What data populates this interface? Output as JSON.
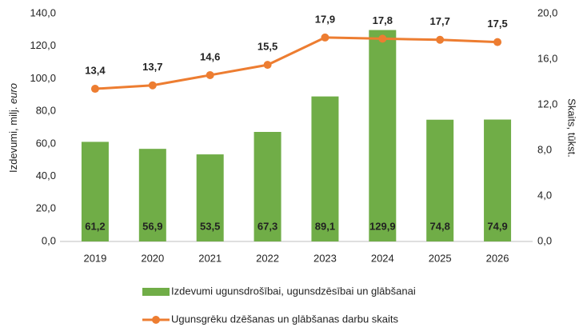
{
  "chart_data": {
    "type": "bar",
    "categories": [
      "2019",
      "2020",
      "2021",
      "2022",
      "2023",
      "2024",
      "2025",
      "2026"
    ],
    "series": [
      {
        "name": "Izdevumi ugunsdrošībai, ugunsdzēsībai un glābšanai",
        "type": "bar",
        "color": "#70ad47",
        "values": [
          61.2,
          56.9,
          53.5,
          67.3,
          89.1,
          129.9,
          74.8,
          74.9
        ],
        "value_labels": [
          "61,2",
          "56,9",
          "53,5",
          "67,3",
          "89,1",
          "129,9",
          "74,8",
          "74,9"
        ]
      },
      {
        "name": "Ugunsgrēku dzēšanas un glābšanas darbu skaits",
        "type": "line",
        "axis": "y2",
        "color": "#ed7d31",
        "values": [
          13.4,
          13.7,
          14.6,
          15.5,
          17.9,
          17.8,
          17.7,
          17.5
        ],
        "value_labels": [
          "13,4",
          "13,7",
          "14,6",
          "15,5",
          "17,9",
          "17,8",
          "17,7",
          "17,5"
        ]
      }
    ],
    "y_label": [
      "Izdevumi, milj.",
      "euro"
    ],
    "y2_label": "Skaits, tūkst.",
    "ylim": [
      0,
      140
    ],
    "yticks": [
      {
        "value": 0,
        "label": "0,0"
      },
      {
        "value": 20,
        "label": "20,0"
      },
      {
        "value": 40,
        "label": "40,0"
      },
      {
        "value": 60,
        "label": "60,0"
      },
      {
        "value": 80,
        "label": "80,0"
      },
      {
        "value": 100,
        "label": "100,0"
      },
      {
        "value": 120,
        "label": "120,0"
      },
      {
        "value": 140,
        "label": "140,0"
      }
    ],
    "y2lim": [
      0,
      20
    ],
    "y2ticks": [
      {
        "value": 0,
        "label": "0,0"
      },
      {
        "value": 4,
        "label": "4,0"
      },
      {
        "value": 8,
        "label": "8,0"
      },
      {
        "value": 12,
        "label": "12,0"
      },
      {
        "value": 16,
        "label": "16,0"
      },
      {
        "value": 20,
        "label": "20,0"
      }
    ],
    "grid": false,
    "legend": "bottom"
  }
}
